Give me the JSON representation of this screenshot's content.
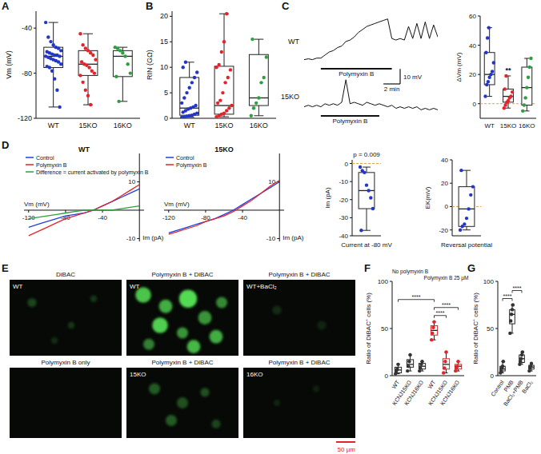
{
  "chart_data": [
    {
      "type": "box",
      "label": "A",
      "ylabel": "Vm (mV)",
      "categories": [
        "WT",
        "15KO",
        "16KO"
      ],
      "colors": [
        "#2336c8",
        "#e3242b",
        "#2e9e3e"
      ],
      "ylim": [
        -120,
        -25
      ],
      "yticks": [
        -120,
        -80,
        -40
      ],
      "boxes": [
        {
          "min": -110,
          "q1": -75,
          "median": -65,
          "q3": -57,
          "max": -35
        },
        {
          "min": -108,
          "q1": -82,
          "median": -72,
          "q3": -60,
          "max": -45
        },
        {
          "min": -105,
          "q1": -83,
          "median": -65,
          "q3": -60,
          "max": -57
        }
      ],
      "points": [
        [
          -35,
          -48,
          -52,
          -55,
          -57,
          -58,
          -60,
          -61,
          -62,
          -63,
          -64,
          -64,
          -65,
          -65,
          -66,
          -67,
          -68,
          -69,
          -70,
          -72,
          -74,
          -75,
          -78,
          -85,
          -95,
          -110
        ],
        [
          -45,
          -55,
          -58,
          -60,
          -62,
          -64,
          -68,
          -70,
          -72,
          -73,
          -75,
          -78,
          -80,
          -82,
          -88,
          -95,
          -100,
          -108
        ],
        [
          -57,
          -58,
          -60,
          -62,
          -65,
          -72,
          -80,
          -83,
          -105
        ]
      ]
    },
    {
      "type": "box",
      "label": "B",
      "ylabel": "RIN (GΩ)",
      "categories": [
        "WT",
        "15KO",
        "16KO"
      ],
      "colors": [
        "#2336c8",
        "#e3242b",
        "#2e9e3e"
      ],
      "ylim": [
        0,
        21
      ],
      "yticks": [
        0,
        5,
        10,
        15,
        20
      ],
      "boxes": [
        {
          "min": 0.2,
          "q1": 0.6,
          "median": 2,
          "q3": 8,
          "max": 11
        },
        {
          "min": 0.3,
          "q1": 0.8,
          "median": 2.5,
          "q3": 10.2,
          "max": 20.5
        },
        {
          "min": 0.5,
          "q1": 2.5,
          "median": 4,
          "q3": 12.5,
          "max": 15.5
        }
      ],
      "points": [
        [
          0.2,
          0.3,
          0.4,
          0.5,
          0.6,
          0.8,
          1,
          1.2,
          1.5,
          1.8,
          2,
          2.2,
          2.5,
          3,
          4,
          5,
          6,
          7,
          8,
          9,
          10,
          11
        ],
        [
          0.3,
          0.5,
          0.8,
          1,
          1.5,
          2,
          2.5,
          3,
          3.5,
          5,
          7,
          8,
          9.5,
          10,
          10.5,
          13,
          15,
          20.5
        ],
        [
          0.5,
          2,
          3,
          4,
          7,
          8,
          12,
          15.5
        ]
      ]
    },
    {
      "type": "line",
      "label": "C",
      "title": "WT",
      "tick_labels": false,
      "xlim": [
        0,
        16
      ],
      "ylim": [
        -5,
        30
      ],
      "x": [
        0,
        0.5,
        1,
        1.5,
        2,
        2.5,
        3,
        3.5,
        4,
        4.5,
        5,
        5.5,
        6,
        6.5,
        7,
        7.5,
        8,
        8.5,
        9,
        9.5,
        10,
        10.5,
        11,
        11.5,
        12,
        12.5,
        13,
        13.5,
        14,
        14.5,
        15,
        15.5,
        16
      ],
      "series": [
        {
          "color": "#111111",
          "values": [
            0,
            0.5,
            0,
            1,
            1,
            3,
            5,
            6,
            8,
            9,
            12,
            13,
            15,
            18,
            20,
            22,
            23,
            24,
            25,
            26,
            27,
            14,
            13,
            14,
            13,
            22,
            14,
            24,
            14,
            25,
            14,
            23,
            15
          ]
        }
      ],
      "annotations": [
        {
          "text": "Polymyxin B",
          "x": [
            2,
            10.5
          ]
        }
      ]
    },
    {
      "type": "line",
      "title": "15KO",
      "tick_labels": false,
      "xlim": [
        0,
        16
      ],
      "ylim": [
        -5,
        20
      ],
      "x": [
        0,
        0.5,
        1,
        1.5,
        2,
        2.5,
        3,
        3.5,
        4,
        4.5,
        5,
        5.5,
        6,
        6.5,
        7,
        7.5,
        8,
        8.5,
        9,
        9.5,
        10,
        10.5,
        11,
        11.5,
        12,
        12.5,
        13,
        13.5,
        14,
        14.5,
        15,
        15.5,
        16
      ],
      "series": [
        {
          "color": "#111111",
          "values": [
            0,
            1,
            0,
            1,
            0,
            2,
            1,
            2,
            1,
            3,
            18,
            2,
            3,
            2,
            1,
            3,
            2,
            1,
            2,
            1,
            0,
            1,
            -1,
            0,
            -1,
            0,
            -1,
            0,
            -2,
            -1,
            -2,
            -1,
            -2
          ]
        }
      ],
      "annotations": [
        {
          "text": "Polymyxin B",
          "x": [
            2,
            9
          ]
        }
      ],
      "scale_bar": {
        "x": 2,
        "x_label": "2 min",
        "y": 10,
        "y_label": "10 mV"
      }
    },
    {
      "type": "box",
      "ylabel": "ΔVm (mV)",
      "categories": [
        "WT",
        "15KO",
        "16KO"
      ],
      "colors": [
        "#2336c8",
        "#e3242b",
        "#2e9e3e"
      ],
      "ylim": [
        -10,
        60
      ],
      "yticks": [
        0,
        20,
        40,
        60
      ],
      "reference_lines": [
        0
      ],
      "boxes": [
        {
          "min": 5,
          "q1": 13,
          "median": 20,
          "q3": 35,
          "max": 52
        },
        {
          "min": -3,
          "q1": 1,
          "median": 5,
          "q3": 10,
          "max": 19
        },
        {
          "min": -5,
          "q1": -1,
          "median": 11,
          "q3": 25,
          "max": 31
        }
      ],
      "points": [
        [
          5,
          13,
          15,
          18,
          20,
          22,
          28,
          35,
          45,
          52
        ],
        [
          -3,
          -1,
          1,
          2,
          4,
          5,
          8,
          10,
          19
        ],
        [
          -5,
          -1,
          4,
          11,
          18,
          25,
          31
        ]
      ],
      "annotations": [
        {
          "text": "**",
          "category": 1
        }
      ]
    },
    {
      "type": "line",
      "label": "D",
      "title": "WT",
      "xlabel": "Vm (mV)",
      "ylabel": "Im (pA)",
      "legend": "upper left",
      "xlim": [
        -125,
        5
      ],
      "ylim": [
        -11,
        20
      ],
      "xticks": [
        -120,
        -80,
        -40
      ],
      "yticks": [
        -10,
        10
      ],
      "x": [
        -120,
        -110,
        -100,
        -90,
        -80,
        -70,
        -60,
        -50,
        -40,
        -30,
        -20,
        -10,
        0
      ],
      "series": [
        {
          "name": "Control",
          "color": "#1f3fe0",
          "values": [
            -6,
            -5,
            -4,
            -3,
            -2,
            -1.5,
            -1,
            0,
            1.5,
            3,
            4.5,
            6,
            7.5
          ]
        },
        {
          "name": "Polymyxin B",
          "color": "#e3242b",
          "values": [
            -9,
            -7.5,
            -6,
            -4.5,
            -3,
            -2,
            -1,
            0,
            1.5,
            3,
            5,
            7,
            9
          ]
        },
        {
          "name": "Difference = current activated by polymyxin B",
          "color": "#2e9e3e",
          "values": [
            -3,
            -2.5,
            -2,
            -1.5,
            -1,
            -0.5,
            0,
            0,
            0,
            0,
            0.5,
            1,
            1.5
          ]
        }
      ]
    },
    {
      "type": "line",
      "title": "15KO",
      "xlabel": "Vm (mV)",
      "ylabel": "Im (pA)",
      "legend": "upper left",
      "xlim": [
        -125,
        5
      ],
      "ylim": [
        -11,
        20
      ],
      "xticks": [
        -120,
        -80,
        -40
      ],
      "yticks": [
        -10,
        10
      ],
      "x": [
        -120,
        -110,
        -100,
        -90,
        -80,
        -70,
        -60,
        -50,
        -40,
        -30,
        -20,
        -10,
        0
      ],
      "series": [
        {
          "name": "Control",
          "color": "#1f3fe0",
          "values": [
            -8,
            -7,
            -6,
            -5,
            -4,
            -3,
            -1.5,
            0,
            2,
            4,
            6,
            8,
            10
          ]
        },
        {
          "name": "Polymyxin B",
          "color": "#e3242b",
          "values": [
            -8.5,
            -7.5,
            -6.5,
            -5.5,
            -4,
            -3,
            -2,
            -0.5,
            1.5,
            3.5,
            6,
            8.5,
            10.5
          ]
        }
      ]
    },
    {
      "type": "box",
      "ylabel": "Im (pA)",
      "xlabel": "Current at -80 mV",
      "categories": [
        null
      ],
      "colors": [
        "#2336c8"
      ],
      "ylim": [
        -40,
        2
      ],
      "yticks": [
        -40,
        -30,
        -20,
        -10,
        0
      ],
      "reference_lines": [
        0
      ],
      "boxes": [
        {
          "min": -37,
          "q1": -25,
          "median": -15,
          "q3": -5,
          "max": -2
        }
      ],
      "points": [
        [
          -2,
          -4,
          -5,
          -12,
          -15,
          -19,
          -25,
          -37
        ]
      ],
      "annotations": [
        {
          "text": "p = 0.009"
        }
      ]
    },
    {
      "type": "box",
      "ylabel": "EK(mV)",
      "xlabel": "Reversal potential",
      "categories": [
        null
      ],
      "colors": [
        "#2336c8"
      ],
      "ylim": [
        -25,
        40
      ],
      "yticks": [
        -20,
        0,
        20,
        40
      ],
      "reference_lines": [
        0
      ],
      "boxes": [
        {
          "min": -20,
          "q1": -17,
          "median": -2,
          "q3": 17,
          "max": 31
        }
      ],
      "points": [
        [
          -20,
          -17,
          -15,
          -10,
          -2,
          10,
          17,
          31
        ]
      ]
    },
    {
      "type": "box",
      "label": "F",
      "ylabel": "Ratio of DiBAC⁺ cells (%)",
      "categories": [
        "WT",
        "KCNJ15KO",
        "KCNJ16KO",
        "WT",
        "KCNJ15KO",
        "KCNJ16KO"
      ],
      "colors": [
        "#333333",
        "#333333",
        "#333333",
        "#e3242b",
        "#e3242b",
        "#e3242b"
      ],
      "ylim": [
        0,
        100
      ],
      "yticks": [
        0,
        50,
        100
      ],
      "groups": [
        {
          "text": "No polymyxin B",
          "categories": [
            0,
            2
          ]
        },
        {
          "text": "Polymyxin B 25 µM",
          "categories": [
            3,
            5
          ]
        }
      ],
      "comparisons": [
        {
          "pair": [
            3,
            4
          ],
          "text": "****"
        },
        {
          "pair": [
            3,
            5
          ],
          "text": "****"
        },
        {
          "pair": [
            0,
            3
          ],
          "text": "****"
        }
      ],
      "boxes": [
        {
          "min": 2,
          "q1": 3,
          "median": 6,
          "q3": 9,
          "max": 12
        },
        {
          "min": 5,
          "q1": 9,
          "median": 12,
          "q3": 17,
          "max": 22
        },
        {
          "min": 5,
          "q1": 7,
          "median": 10,
          "q3": 13,
          "max": 15
        },
        {
          "min": 38,
          "q1": 43,
          "median": 48,
          "q3": 53,
          "max": 57
        },
        {
          "min": 3,
          "q1": 7,
          "median": 12,
          "q3": 18,
          "max": 25
        },
        {
          "min": 5,
          "q1": 7,
          "median": 10,
          "q3": 12,
          "max": 15
        }
      ],
      "points": [
        [
          2,
          5,
          7,
          12
        ],
        [
          5,
          10,
          15,
          22
        ],
        [
          5,
          8,
          12,
          15
        ],
        [
          38,
          45,
          51,
          57
        ],
        [
          3,
          8,
          15,
          25
        ],
        [
          5,
          8,
          10,
          15
        ]
      ]
    },
    {
      "type": "box",
      "label": "G",
      "ylabel": "Ratio of DiBAC⁺ cells (%)",
      "categories": [
        "Control",
        "PMB",
        "BaCl₂+PMB",
        "BaCl₂"
      ],
      "colors": [
        "#333333",
        "#333333",
        "#333333",
        "#333333"
      ],
      "ylim": [
        0,
        100
      ],
      "yticks": [
        0,
        50,
        100
      ],
      "comparisons": [
        {
          "pair": [
            0,
            1
          ],
          "text": "****"
        },
        {
          "pair": [
            1,
            2
          ],
          "text": "****"
        }
      ],
      "boxes": [
        {
          "min": 3,
          "q1": 5,
          "median": 7,
          "q3": 10,
          "max": 15
        },
        {
          "min": 45,
          "q1": 55,
          "median": 65,
          "q3": 70,
          "max": 75
        },
        {
          "min": 12,
          "q1": 14,
          "median": 18,
          "q3": 22,
          "max": 25
        },
        {
          "min": 5,
          "q1": 7,
          "median": 9,
          "q3": 11,
          "max": 13
        }
      ],
      "points": [
        [
          3,
          5,
          8,
          10,
          15
        ],
        [
          45,
          58,
          65,
          70,
          75
        ],
        [
          12,
          15,
          18,
          22,
          25
        ],
        [
          5,
          8,
          10,
          13
        ]
      ]
    }
  ],
  "image_panels": {
    "label": "E",
    "scale_bar_label": "50 µm",
    "images": [
      {
        "header": "DiBAC",
        "label": "WT",
        "cells": [
          [
            20,
            30,
            4,
            0.25
          ],
          [
            55,
            60,
            3,
            0.2
          ],
          [
            75,
            25,
            3,
            0.2
          ],
          [
            40,
            80,
            3,
            0.15
          ]
        ]
      },
      {
        "header": "Polymyxin B + DiBAC",
        "label": "WT",
        "cells": [
          [
            15,
            20,
            7,
            0.8
          ],
          [
            35,
            35,
            6,
            0.7
          ],
          [
            55,
            25,
            8,
            0.9
          ],
          [
            70,
            50,
            6,
            0.6
          ],
          [
            30,
            60,
            7,
            0.85
          ],
          [
            50,
            70,
            5,
            0.6
          ],
          [
            80,
            75,
            6,
            0.7
          ],
          [
            20,
            85,
            5,
            0.5
          ],
          [
            85,
            30,
            5,
            0.55
          ],
          [
            60,
            88,
            6,
            0.75
          ]
        ]
      },
      {
        "header": "Polymyxin B + DiBAC",
        "label": "WT+BaCl₂",
        "cells": [
          [
            30,
            40,
            4,
            0.15
          ],
          [
            70,
            60,
            4,
            0.12
          ]
        ]
      },
      {
        "header": "Polymyxin B only",
        "cells": []
      },
      {
        "header": "Polymyxin B + DiBAC",
        "label": "15KO",
        "cells": [
          [
            25,
            30,
            5,
            0.35
          ],
          [
            50,
            50,
            5,
            0.3
          ],
          [
            70,
            35,
            4,
            0.3
          ],
          [
            40,
            75,
            5,
            0.35
          ],
          [
            80,
            80,
            4,
            0.25
          ]
        ]
      },
      {
        "header": "Polymyxin B + DiBAC",
        "label": "16KO",
        "cells": [
          [
            30,
            50,
            3,
            0.12
          ],
          [
            65,
            30,
            3,
            0.1
          ]
        ]
      }
    ]
  }
}
